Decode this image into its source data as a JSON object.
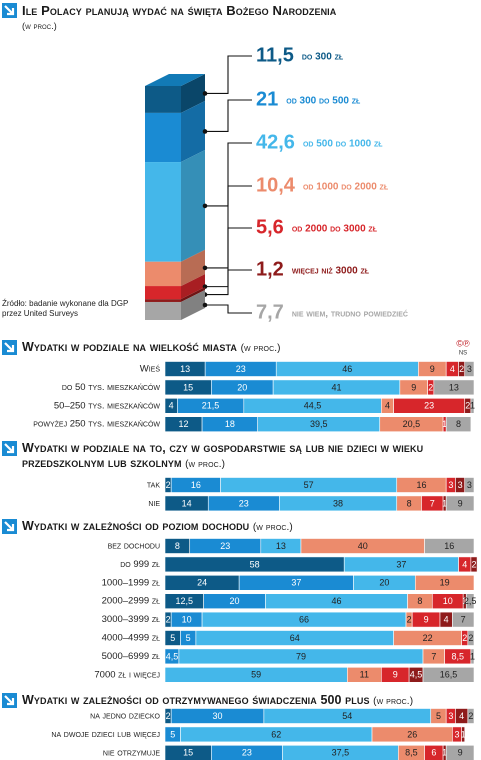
{
  "chart_data": [
    {
      "type": "stacked_bar_3d",
      "title": "Ile Polacy planują wydać na święta Bożego Narodzenia",
      "subtitle": "(w proc.)",
      "source": "Źródło: badanie wykonane dla DGP przez United Surveys",
      "categories": [
        "do 300 zł",
        "od 300 do 500 zł",
        "od 500 do 1000 zł",
        "od 1000 do 2000 zł",
        "od 2000 do 3000 zł",
        "więcej niż 3000 zł",
        "nie wiem, trudno powiedzieć"
      ],
      "values": [
        11.5,
        21,
        42.6,
        10.4,
        5.6,
        1.2,
        7.7
      ],
      "value_labels": [
        "11,5",
        "21",
        "42,6",
        "10,4",
        "5,6",
        "1,2",
        "7,7"
      ],
      "colors": [
        "#0d5a87",
        "#1a8bd3",
        "#44b7ea",
        "#ec8b6c",
        "#d7262b",
        "#8e1b1b",
        "#a6a6a6"
      ]
    },
    {
      "type": "stacked_hbar",
      "title": "Wydatki w podziale na wielkość miasta",
      "subtitle": "(w proc.)",
      "badge": "©℗",
      "badge_caption": "NS",
      "xlim": [
        0,
        100
      ],
      "categories": [
        "Wieś",
        "do 50 tys. mieszkańców",
        "50–250 tys. mieszkańców",
        "powyżej 250 tys. mieszkańców"
      ],
      "series": [
        {
          "color": "#0d5a87",
          "values": [
            13,
            15,
            4,
            12
          ]
        },
        {
          "color": "#1a8bd3",
          "values": [
            23,
            20,
            21.5,
            18
          ],
          "value_labels": [
            "23",
            "20",
            "21,5",
            "18"
          ]
        },
        {
          "color": "#44b7ea",
          "values": [
            46,
            41,
            44.5,
            39.5
          ],
          "value_labels": [
            "46",
            "41",
            "44,5",
            "39,5"
          ]
        },
        {
          "color": "#ec8b6c",
          "values": [
            9,
            9,
            4,
            20.5
          ],
          "value_labels": [
            "9",
            "9",
            "4",
            "20,5"
          ]
        },
        {
          "color": "#d7262b",
          "values": [
            4,
            2,
            23,
            1
          ]
        },
        {
          "color": "#8e1b1b",
          "values": [
            2,
            null,
            2,
            null
          ]
        },
        {
          "color": "#a6a6a6",
          "values": [
            3,
            13,
            1,
            8
          ]
        }
      ]
    },
    {
      "type": "stacked_hbar",
      "title": "Wydatki w podziale na to, czy w gospodarstwie są lub nie dzieci w wieku przedszkolnym lub szkolnym",
      "subtitle": "(w proc.)",
      "xlim": [
        0,
        100
      ],
      "categories": [
        "tak",
        "nie"
      ],
      "series": [
        {
          "color": "#0d5a87",
          "values": [
            2,
            14
          ]
        },
        {
          "color": "#1a8bd3",
          "values": [
            16,
            23
          ]
        },
        {
          "color": "#44b7ea",
          "values": [
            57,
            38
          ]
        },
        {
          "color": "#ec8b6c",
          "values": [
            16,
            8
          ]
        },
        {
          "color": "#d7262b",
          "values": [
            3,
            7
          ]
        },
        {
          "color": "#8e1b1b",
          "values": [
            3,
            1
          ]
        },
        {
          "color": "#a6a6a6",
          "values": [
            3,
            9
          ]
        }
      ]
    },
    {
      "type": "stacked_hbar",
      "title": "Wydatki w zależności od poziom dochodu",
      "subtitle": "(w proc.)",
      "xlim": [
        0,
        100
      ],
      "categories": [
        "bez dochodu",
        "do 999 zł",
        "1000–1999 zł",
        "2000–2999 zł",
        "3000–3999 zł",
        "4000–4999 zł",
        "5000–6999 zł",
        "7000 zł i więcej"
      ],
      "series": [
        {
          "color": "#0d5a87",
          "values": [
            8,
            58,
            24,
            12.5,
            2,
            5,
            null,
            null
          ],
          "value_labels": [
            "8",
            "58",
            "24",
            "12,5",
            "2",
            "5",
            null,
            null
          ]
        },
        {
          "color": "#1a8bd3",
          "values": [
            23,
            null,
            37,
            20,
            10,
            5,
            4.5,
            null
          ],
          "value_labels": [
            "23",
            null,
            "37",
            "20",
            "10",
            "5",
            "4,5",
            null
          ]
        },
        {
          "color": "#44b7ea",
          "values": [
            13,
            37,
            20,
            46,
            66,
            64,
            79,
            59
          ]
        },
        {
          "color": "#ec8b6c",
          "values": [
            40,
            null,
            19,
            8,
            2,
            22,
            7,
            11
          ]
        },
        {
          "color": "#d7262b",
          "values": [
            null,
            4,
            null,
            10,
            9,
            2,
            8.5,
            9
          ],
          "value_labels": [
            null,
            "4",
            null,
            "10",
            "9",
            "2",
            "8,5",
            "9"
          ]
        },
        {
          "color": "#8e1b1b",
          "values": [
            null,
            2,
            null,
            1,
            4,
            null,
            null,
            4.5
          ],
          "value_labels": [
            null,
            "2",
            null,
            "1",
            "4",
            null,
            null,
            "4,5"
          ]
        },
        {
          "color": "#a6a6a6",
          "values": [
            16,
            null,
            null,
            2.5,
            7,
            2,
            1,
            16.5
          ],
          "value_labels": [
            "16",
            null,
            null,
            "2,5",
            "7",
            "2",
            "1",
            "16,5"
          ]
        }
      ]
    },
    {
      "type": "stacked_hbar",
      "title": "Wydatki w zależności od otrzymywanego świadczenia 500 plus",
      "subtitle": "(w proc.)",
      "xlim": [
        0,
        100
      ],
      "categories": [
        "na jedno dziecko",
        "na dwoje dzieci lub więcej",
        "nie otrzymuje"
      ],
      "series": [
        {
          "color": "#0d5a87",
          "values": [
            2,
            null,
            15
          ]
        },
        {
          "color": "#1a8bd3",
          "values": [
            30,
            5,
            23
          ]
        },
        {
          "color": "#44b7ea",
          "values": [
            54,
            62,
            37.5
          ],
          "value_labels": [
            "54",
            "62",
            "37,5"
          ]
        },
        {
          "color": "#ec8b6c",
          "values": [
            5,
            26,
            8.5
          ],
          "value_labels": [
            "5",
            "26",
            "8,5"
          ]
        },
        {
          "color": "#d7262b",
          "values": [
            3,
            3,
            6
          ]
        },
        {
          "color": "#8e1b1b",
          "values": [
            4,
            1,
            1
          ]
        },
        {
          "color": "#a6a6a6",
          "values": [
            2,
            null,
            9
          ]
        }
      ]
    }
  ]
}
